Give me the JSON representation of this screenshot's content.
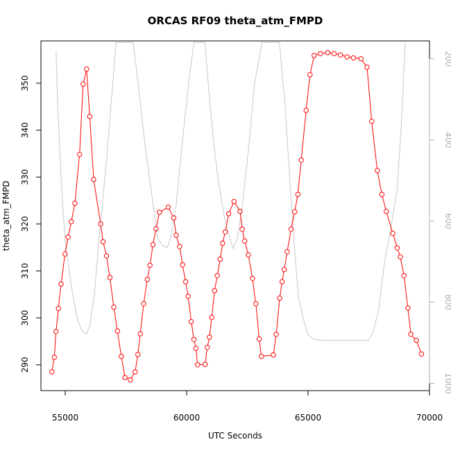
{
  "chart_data": {
    "type": "line",
    "title": "ORCAS RF09 theta_atm_FMPD",
    "xlabel": "UTC Seconds",
    "ylabel": "theta_atm_FMPD",
    "xlim": [
      54000,
      70000
    ],
    "ylim": [
      284.5,
      359
    ],
    "x_ticks": [
      55000,
      60000,
      65000,
      70000
    ],
    "y_ticks": [
      290,
      300,
      310,
      320,
      330,
      340,
      350
    ],
    "y2_ticks": [
      200,
      400,
      600,
      800,
      1000
    ],
    "y2lim": [
      1018,
      156
    ],
    "colors": {
      "primary": "#ff0000",
      "secondary": "#c8c8c8"
    },
    "series": [
      {
        "values": [
          [
            54450,
            288.5
          ],
          [
            54550,
            291.6
          ],
          [
            54620,
            297.1
          ],
          [
            54720,
            302.0
          ],
          [
            54830,
            307.2
          ],
          [
            54990,
            313.6
          ],
          [
            55120,
            317.2
          ],
          [
            55250,
            320.5
          ],
          [
            55400,
            324.4
          ],
          [
            55590,
            334.8
          ],
          [
            55740,
            349.8
          ],
          [
            55880,
            353.0
          ],
          [
            56010,
            342.9
          ],
          [
            56170,
            329.5
          ],
          [
            56460,
            320.0
          ],
          [
            56560,
            316.2
          ],
          [
            56700,
            313.2
          ],
          [
            56840,
            308.6
          ],
          [
            57000,
            302.3
          ],
          [
            57150,
            297.2
          ],
          [
            57310,
            291.8
          ],
          [
            57460,
            287.3
          ],
          [
            57680,
            286.8
          ],
          [
            57880,
            288.5
          ],
          [
            57990,
            292.2
          ],
          [
            58090,
            296.6
          ],
          [
            58230,
            303.0
          ],
          [
            58380,
            308.2
          ],
          [
            58490,
            311.2
          ],
          [
            58610,
            315.6
          ],
          [
            58740,
            319.0
          ],
          [
            58880,
            322.5
          ],
          [
            59240,
            323.6
          ],
          [
            59470,
            321.3
          ],
          [
            59570,
            317.6
          ],
          [
            59710,
            315.2
          ],
          [
            59830,
            311.3
          ],
          [
            59960,
            307.7
          ],
          [
            60060,
            304.6
          ],
          [
            60190,
            299.2
          ],
          [
            60300,
            295.4
          ],
          [
            60380,
            293.5
          ],
          [
            60450,
            290.0
          ],
          [
            60760,
            290.1
          ],
          [
            60850,
            293.7
          ],
          [
            60940,
            295.9
          ],
          [
            61030,
            300.1
          ],
          [
            61150,
            305.8
          ],
          [
            61260,
            309.0
          ],
          [
            61380,
            312.5
          ],
          [
            61480,
            315.9
          ],
          [
            61590,
            318.3
          ],
          [
            61730,
            322.2
          ],
          [
            61950,
            324.8
          ],
          [
            62200,
            322.7
          ],
          [
            62290,
            318.9
          ],
          [
            62390,
            316.4
          ],
          [
            62540,
            313.4
          ],
          [
            62710,
            308.4
          ],
          [
            62850,
            303.0
          ],
          [
            62990,
            295.5
          ],
          [
            63080,
            291.8
          ],
          [
            63570,
            292.1
          ],
          [
            63690,
            296.5
          ],
          [
            63830,
            304.2
          ],
          [
            63930,
            307.7
          ],
          [
            64020,
            310.3
          ],
          [
            64140,
            314.1
          ],
          [
            64300,
            318.9
          ],
          [
            64450,
            322.6
          ],
          [
            64580,
            326.3
          ],
          [
            64720,
            333.6
          ],
          [
            64920,
            344.2
          ],
          [
            65080,
            351.8
          ],
          [
            65250,
            355.9
          ],
          [
            65510,
            356.3
          ],
          [
            65810,
            356.5
          ],
          [
            66070,
            356.3
          ],
          [
            66330,
            356.0
          ],
          [
            66610,
            355.6
          ],
          [
            66870,
            355.4
          ],
          [
            67180,
            355.2
          ],
          [
            67430,
            353.4
          ],
          [
            67620,
            341.9
          ],
          [
            67850,
            331.4
          ],
          [
            68040,
            326.3
          ],
          [
            68220,
            322.7
          ],
          [
            68490,
            318.0
          ],
          [
            68670,
            314.9
          ],
          [
            68800,
            313.0
          ],
          [
            68950,
            309.0
          ],
          [
            69110,
            302.1
          ],
          [
            69230,
            296.5
          ],
          [
            69460,
            295.2
          ],
          [
            69670,
            292.3
          ]
        ]
      },
      {
        "values": [
          [
            54620,
            180
          ],
          [
            54700,
            330
          ],
          [
            54850,
            520
          ],
          [
            55000,
            650
          ],
          [
            55250,
            760
          ],
          [
            55490,
            840
          ],
          [
            55700,
            872
          ],
          [
            55870,
            878
          ],
          [
            56010,
            860
          ],
          [
            56200,
            780
          ],
          [
            56400,
            640
          ],
          [
            56700,
            450
          ],
          [
            56960,
            260
          ],
          [
            57100,
            160
          ],
          [
            57800,
            160
          ],
          [
            58000,
            260
          ],
          [
            58300,
            420
          ],
          [
            58600,
            550
          ],
          [
            58800,
            642
          ],
          [
            59000,
            660
          ],
          [
            59200,
            665
          ],
          [
            59350,
            640
          ],
          [
            59570,
            560
          ],
          [
            59830,
            400
          ],
          [
            60100,
            250
          ],
          [
            60300,
            160
          ],
          [
            60760,
            160
          ],
          [
            60900,
            270
          ],
          [
            61100,
            400
          ],
          [
            61300,
            500
          ],
          [
            61550,
            590
          ],
          [
            61760,
            640
          ],
          [
            61920,
            668
          ],
          [
            62100,
            640
          ],
          [
            62300,
            560
          ],
          [
            62550,
            420
          ],
          [
            62800,
            260
          ],
          [
            63100,
            160
          ],
          [
            63820,
            160
          ],
          [
            64060,
            320
          ],
          [
            64250,
            500
          ],
          [
            64420,
            650
          ],
          [
            64600,
            785
          ],
          [
            64800,
            840
          ],
          [
            65000,
            880
          ],
          [
            65250,
            892
          ],
          [
            65600,
            894
          ],
          [
            66000,
            894
          ],
          [
            67000,
            894
          ],
          [
            67500,
            894
          ],
          [
            67700,
            870
          ],
          [
            67900,
            820
          ],
          [
            68150,
            700
          ],
          [
            68400,
            620
          ],
          [
            68670,
            520
          ],
          [
            68850,
            350
          ],
          [
            69000,
            160
          ]
        ]
      }
    ]
  }
}
